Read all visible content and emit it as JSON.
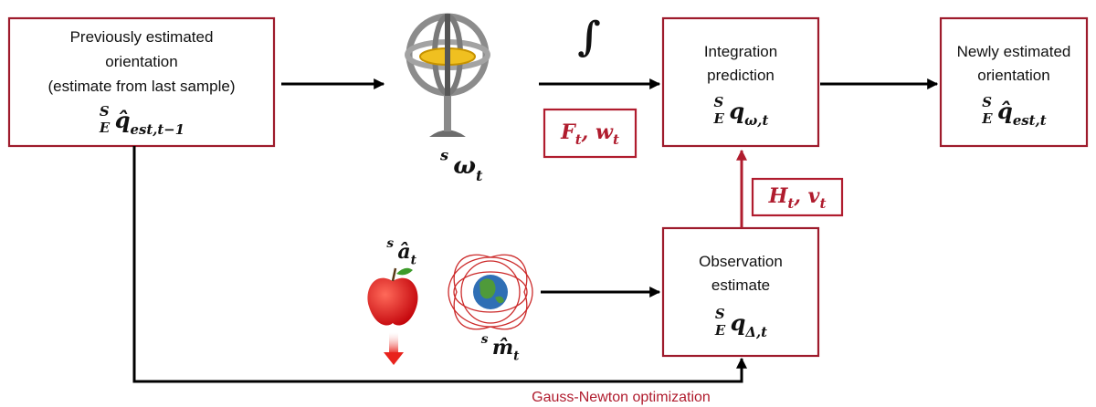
{
  "boxes": [
    {
      "lines": [
        "Previously estimated",
        "orientation",
        "(estimate from last sample)"
      ],
      "symbol": {
        "sup": "S",
        "pre": "E",
        "base": "q̂",
        "sub": "est,t−1"
      }
    },
    {
      "lines": [
        "Integration",
        "prediction"
      ],
      "symbol": {
        "sup": "S",
        "pre": "E",
        "base": "q",
        "sub": "ω,t"
      }
    },
    {
      "lines": [
        "Newly estimated",
        "orientation"
      ],
      "symbol": {
        "sup": "S",
        "pre": "E",
        "base": "q̂",
        "sub": "est,t"
      }
    },
    {
      "lines": [
        "Observation",
        "estimate"
      ],
      "symbol": {
        "sup": "S",
        "pre": "E",
        "base": "q",
        "sub": "Δ,t"
      }
    }
  ],
  "gyro": {
    "sup": "s",
    "base": "ω",
    "sub": "t"
  },
  "accel": {
    "sup": "s",
    "base": "â",
    "sub": "t"
  },
  "mag": {
    "sup": "s",
    "base": "m̂",
    "sub": "t"
  },
  "integral": "∫",
  "process_noise": {
    "a": "F",
    "a_sub": "t",
    "sep": ", ",
    "b": "w",
    "b_sub": "t"
  },
  "observation_noise": {
    "a": "H",
    "a_sub": "t",
    "sep": ", ",
    "b": "v",
    "b_sub": "t"
  },
  "optimization_label": "Gauss-Newton optimization"
}
